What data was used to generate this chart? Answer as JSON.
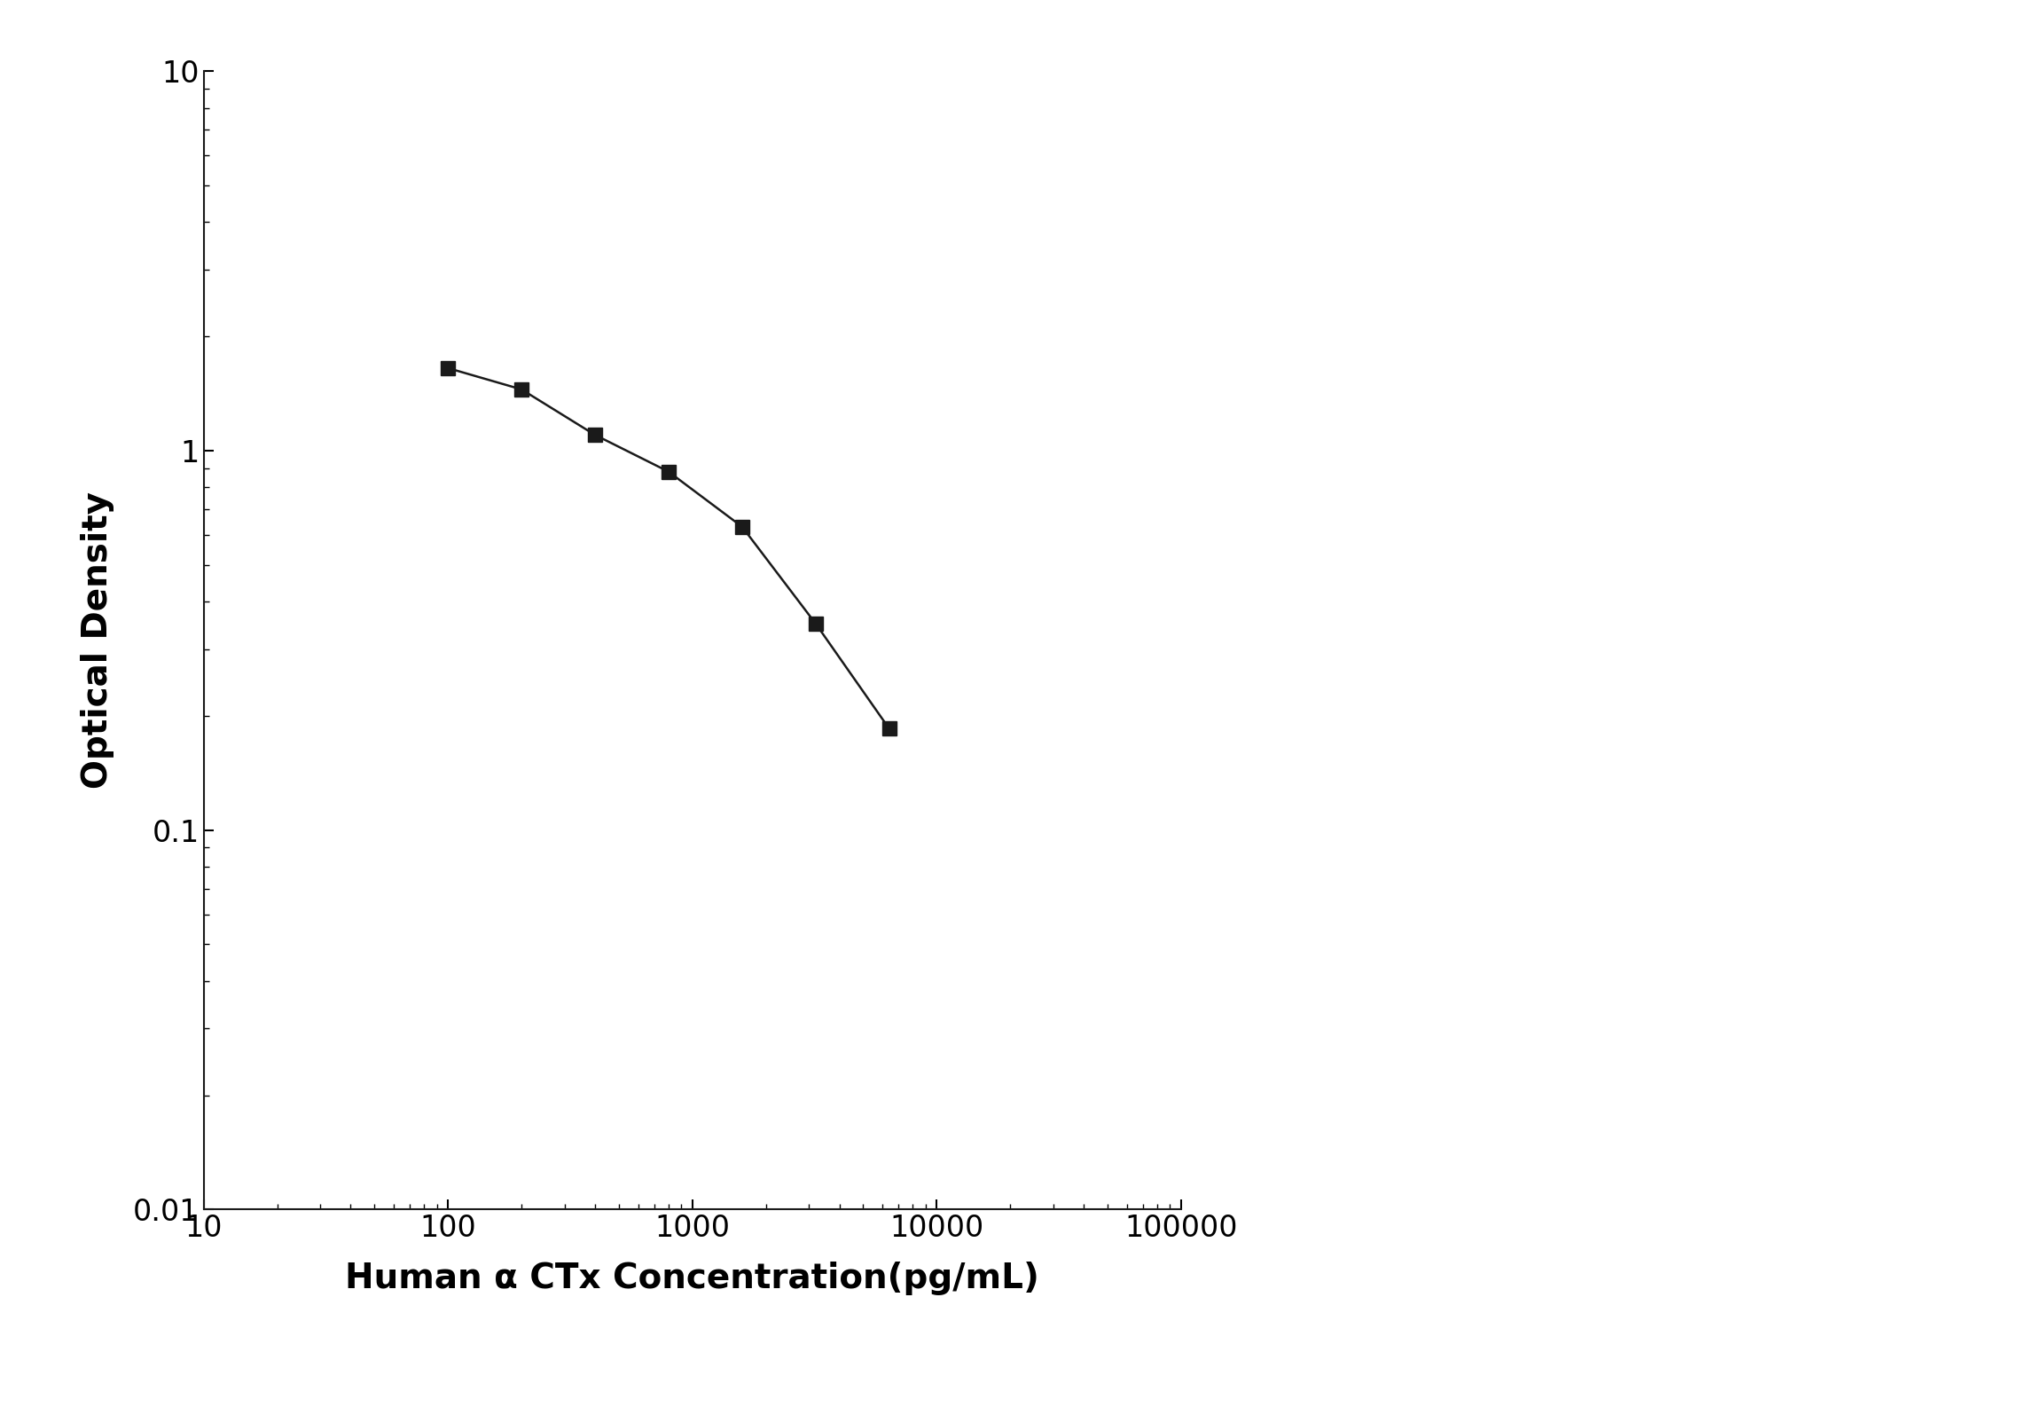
{
  "x_data": [
    100,
    200,
    400,
    800,
    1600,
    3200,
    6400
  ],
  "y_data": [
    1.65,
    1.45,
    1.1,
    0.88,
    0.63,
    0.35,
    0.185
  ],
  "xlabel": "Human α CTx Concentration(pg/mL)",
  "ylabel": "Optical Density",
  "xlim": [
    10,
    100000
  ],
  "ylim": [
    0.01,
    10
  ],
  "line_color": "#1a1a1a",
  "marker": "s",
  "marker_size": 11,
  "marker_color": "#1a1a1a",
  "linewidth": 1.8,
  "background_color": "#ffffff",
  "xlabel_fontsize": 28,
  "ylabel_fontsize": 28,
  "tick_fontsize": 24,
  "xlabel_fontweight": "bold",
  "ylabel_fontweight": "bold"
}
